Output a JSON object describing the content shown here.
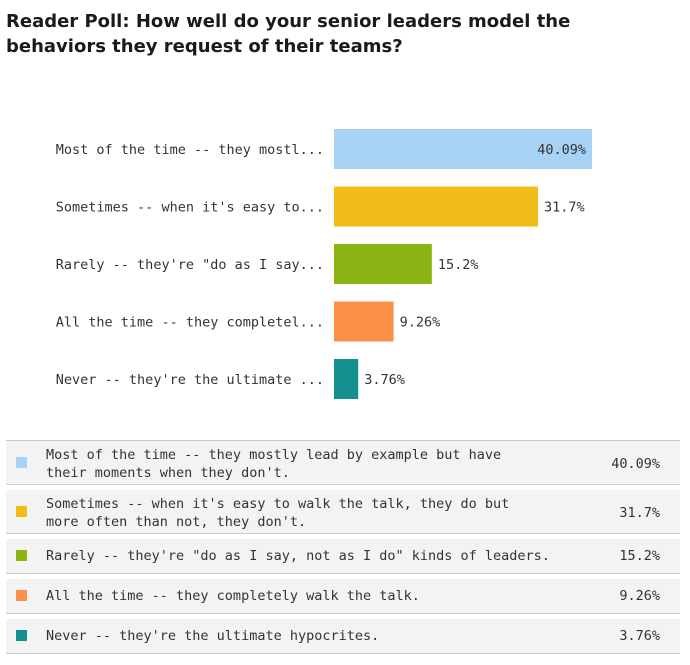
{
  "title": "Reader Poll: How well do your senior leaders model the behaviors they request of their teams?",
  "chart_data": {
    "type": "bar",
    "orientation": "horizontal",
    "categories": [
      "Most of the time -- they mostl...",
      "Sometimes -- when it's easy to...",
      "Rarely -- they're \"do as I say...",
      "All the time -- they completel...",
      "Never -- they're the ultimate ..."
    ],
    "values": [
      40.09,
      31.7,
      15.2,
      9.26,
      3.76
    ],
    "value_labels": [
      "40.09%",
      "31.7%",
      "15.2%",
      "9.26%",
      "3.76%"
    ],
    "colors": [
      "#a8d2f4",
      "#f2bd1a",
      "#8ab414",
      "#fb9148",
      "#148f8f"
    ],
    "xlim": [
      0,
      40.09
    ],
    "grid": false
  },
  "legend": [
    {
      "label_line1": "Most of the time -- they mostly lead by example but have",
      "label_line2": "their moments when they don't.",
      "pct": "40.09%",
      "color": "#a8d2f4"
    },
    {
      "label_line1": "Sometimes -- when it's easy to walk the talk, they do but",
      "label_line2": "more often than not, they don't.",
      "pct": "31.7%",
      "color": "#f2bd1a"
    },
    {
      "label_line1": "Rarely -- they're \"do as I say, not as I do\" kinds of leaders.",
      "label_line2": "",
      "pct": "15.2%",
      "color": "#8ab414"
    },
    {
      "label_line1": "All the time -- they completely walk the talk.",
      "label_line2": "",
      "pct": "9.26%",
      "color": "#fb9148"
    },
    {
      "label_line1": "Never -- they're the ultimate hypocrites.",
      "label_line2": "",
      "pct": "3.76%",
      "color": "#148f8f"
    }
  ]
}
